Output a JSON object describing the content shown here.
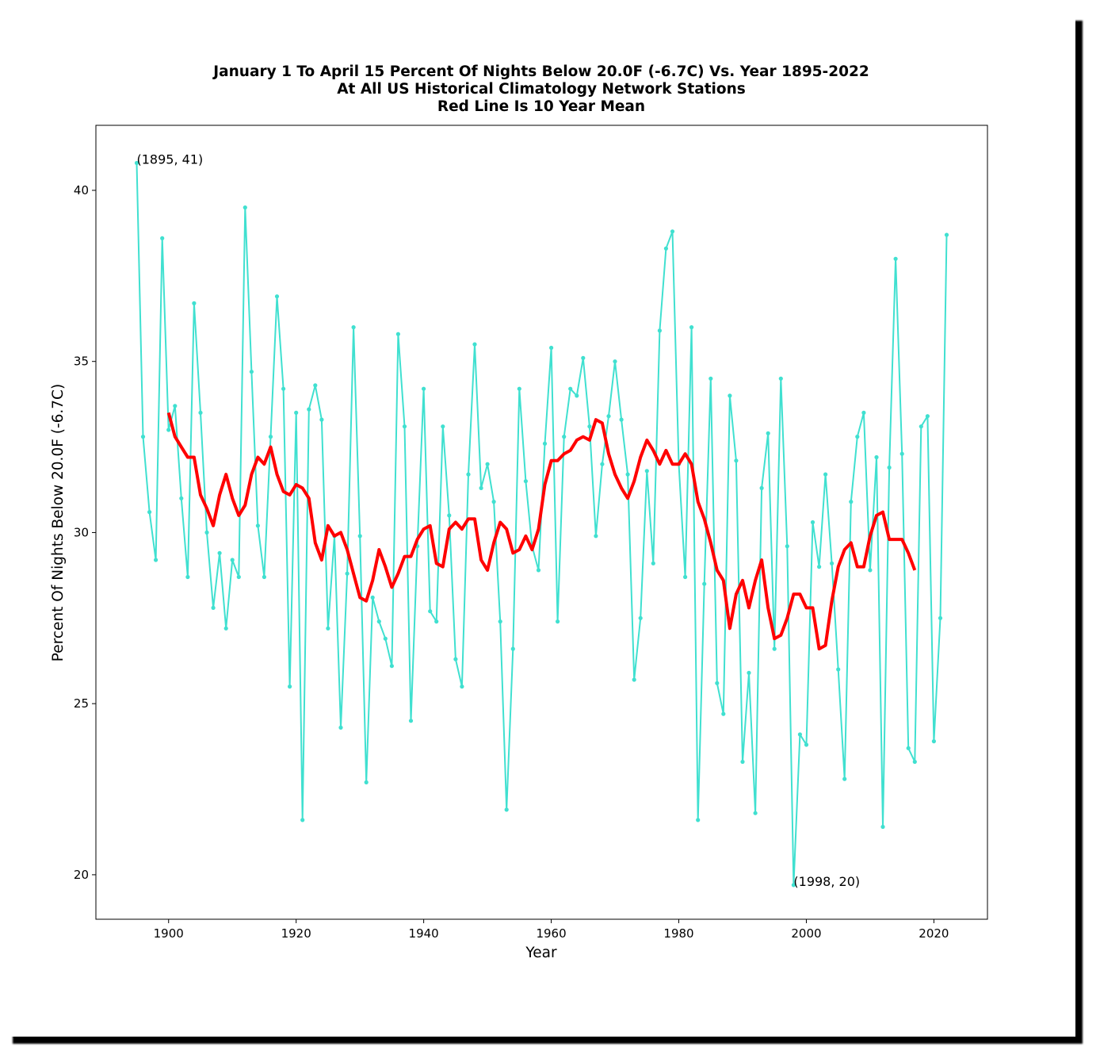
{
  "chart_data": {
    "type": "line",
    "title": [
      "January 1 To April 15 Percent Of Nights Below 20.0F (-6.7C) Vs. Year 1895-2022",
      "At All US Historical Climatology Network Stations",
      "Red Line Is 10 Year Mean"
    ],
    "xlabel": "Year",
    "ylabel": "Percent Of Nights Below 20.0F (-6.7C)",
    "xlim": [
      1888.6,
      2028.4
    ],
    "ylim": [
      18.7,
      41.9
    ],
    "xticks": [
      1900,
      1920,
      1940,
      1960,
      1980,
      2000,
      2020
    ],
    "yticks": [
      20,
      25,
      30,
      35,
      40
    ],
    "grid": false,
    "series": [
      {
        "color": "#40e0d0",
        "marker": "dot",
        "x": [
          1895,
          1896,
          1897,
          1898,
          1899,
          1900,
          1901,
          1902,
          1903,
          1904,
          1905,
          1906,
          1907,
          1908,
          1909,
          1910,
          1911,
          1912,
          1913,
          1914,
          1915,
          1916,
          1917,
          1918,
          1919,
          1920,
          1921,
          1922,
          1923,
          1924,
          1925,
          1926,
          1927,
          1928,
          1929,
          1930,
          1931,
          1932,
          1933,
          1934,
          1935,
          1936,
          1937,
          1938,
          1939,
          1940,
          1941,
          1942,
          1943,
          1944,
          1945,
          1946,
          1947,
          1948,
          1949,
          1950,
          1951,
          1952,
          1953,
          1954,
          1955,
          1956,
          1957,
          1958,
          1959,
          1960,
          1961,
          1962,
          1963,
          1964,
          1965,
          1966,
          1967,
          1968,
          1969,
          1970,
          1971,
          1972,
          1973,
          1974,
          1975,
          1976,
          1977,
          1978,
          1979,
          1980,
          1981,
          1982,
          1983,
          1984,
          1985,
          1986,
          1987,
          1988,
          1989,
          1990,
          1991,
          1992,
          1993,
          1994,
          1995,
          1996,
          1997,
          1998,
          1999,
          2000,
          2001,
          2002,
          2003,
          2004,
          2005,
          2006,
          2007,
          2008,
          2009,
          2010,
          2011,
          2012,
          2013,
          2014,
          2015,
          2016,
          2017,
          2018,
          2019,
          2020,
          2021,
          2022
        ],
        "y": [
          40.8,
          32.8,
          30.6,
          29.2,
          38.6,
          33.0,
          33.7,
          31.0,
          28.7,
          36.7,
          33.5,
          30.0,
          27.8,
          29.4,
          27.2,
          29.2,
          28.7,
          39.5,
          34.7,
          30.2,
          28.7,
          32.8,
          36.9,
          34.2,
          25.5,
          33.5,
          21.6,
          33.6,
          34.3,
          33.3,
          27.2,
          29.9,
          24.3,
          28.8,
          36.0,
          29.9,
          22.7,
          28.1,
          27.4,
          26.9,
          26.1,
          35.8,
          33.1,
          24.5,
          29.6,
          34.2,
          27.7,
          27.4,
          33.1,
          30.5,
          26.3,
          25.5,
          31.7,
          35.5,
          31.3,
          32.0,
          30.9,
          27.4,
          21.9,
          26.6,
          34.2,
          31.5,
          29.6,
          28.9,
          32.6,
          35.4,
          27.4,
          32.8,
          34.2,
          34.0,
          35.1,
          33.1,
          29.9,
          32.0,
          33.4,
          35.0,
          33.3,
          31.7,
          25.7,
          27.5,
          31.8,
          29.1,
          35.9,
          38.3,
          38.8,
          32.0,
          28.7,
          36.0,
          21.6,
          28.5,
          34.5,
          25.6,
          24.7,
          34.0,
          32.1,
          23.3,
          25.9,
          21.8,
          31.3,
          32.9,
          26.6,
          34.5,
          29.6,
          19.7,
          24.1,
          23.8,
          30.3,
          29.0,
          31.7,
          29.1,
          26.0,
          22.8,
          30.9,
          32.8,
          33.5,
          28.9,
          32.2,
          21.4,
          31.9,
          38.0,
          32.3,
          23.7,
          23.3,
          33.1,
          33.4,
          23.9,
          27.5,
          38.7
        ]
      },
      {
        "color": "#ff0000",
        "x": [
          1900,
          1901,
          1902,
          1903,
          1904,
          1905,
          1906,
          1907,
          1908,
          1909,
          1910,
          1911,
          1912,
          1913,
          1914,
          1915,
          1916,
          1917,
          1918,
          1919,
          1920,
          1921,
          1922,
          1923,
          1924,
          1925,
          1926,
          1927,
          1928,
          1929,
          1930,
          1931,
          1932,
          1933,
          1934,
          1935,
          1936,
          1937,
          1938,
          1939,
          1940,
          1941,
          1942,
          1943,
          1944,
          1945,
          1946,
          1947,
          1948,
          1949,
          1950,
          1951,
          1952,
          1953,
          1954,
          1955,
          1956,
          1957,
          1958,
          1959,
          1960,
          1961,
          1962,
          1963,
          1964,
          1965,
          1966,
          1967,
          1968,
          1969,
          1970,
          1971,
          1972,
          1973,
          1974,
          1975,
          1976,
          1977,
          1978,
          1979,
          1980,
          1981,
          1982,
          1983,
          1984,
          1985,
          1986,
          1987,
          1988,
          1989,
          1990,
          1991,
          1992,
          1993,
          1994,
          1995,
          1996,
          1997,
          1998,
          1999,
          2000,
          2001,
          2002,
          2003,
          2004,
          2005,
          2006,
          2007,
          2008,
          2009,
          2010,
          2011,
          2012,
          2013,
          2014,
          2015,
          2016,
          2017
        ],
        "y": [
          33.5,
          32.8,
          32.5,
          32.2,
          32.2,
          31.1,
          30.7,
          30.2,
          31.1,
          31.7,
          31.0,
          30.5,
          30.8,
          31.7,
          32.2,
          32.0,
          32.5,
          31.7,
          31.2,
          31.1,
          31.4,
          31.3,
          31.0,
          29.7,
          29.2,
          30.2,
          29.9,
          30.0,
          29.5,
          28.8,
          28.1,
          28.0,
          28.6,
          29.5,
          29.0,
          28.4,
          28.8,
          29.3,
          29.3,
          29.8,
          30.1,
          30.2,
          29.1,
          29.0,
          30.1,
          30.3,
          30.1,
          30.4,
          30.4,
          29.2,
          28.9,
          29.7,
          30.3,
          30.1,
          29.4,
          29.5,
          29.9,
          29.5,
          30.1,
          31.4,
          32.1,
          32.1,
          32.3,
          32.4,
          32.7,
          32.8,
          32.7,
          33.3,
          33.2,
          32.3,
          31.7,
          31.3,
          31.0,
          31.5,
          32.2,
          32.7,
          32.4,
          32.0,
          32.4,
          32.0,
          32.0,
          32.3,
          32.0,
          30.9,
          30.4,
          29.7,
          28.9,
          28.6,
          27.2,
          28.2,
          28.6,
          27.8,
          28.6,
          29.2,
          27.8,
          26.9,
          27.0,
          27.5,
          28.2,
          28.2,
          27.8,
          27.8,
          26.6,
          26.7,
          28.0,
          29.0,
          29.5,
          29.7,
          29.0,
          29.0,
          29.9,
          30.5,
          30.6,
          29.8,
          29.8,
          29.8,
          29.4,
          28.9
        ]
      }
    ],
    "annotations": [
      {
        "x": 1895,
        "y": 40.8,
        "text": "(1895, 41)"
      },
      {
        "x": 1998,
        "y": 19.7,
        "text": "(1998, 20)"
      }
    ]
  }
}
